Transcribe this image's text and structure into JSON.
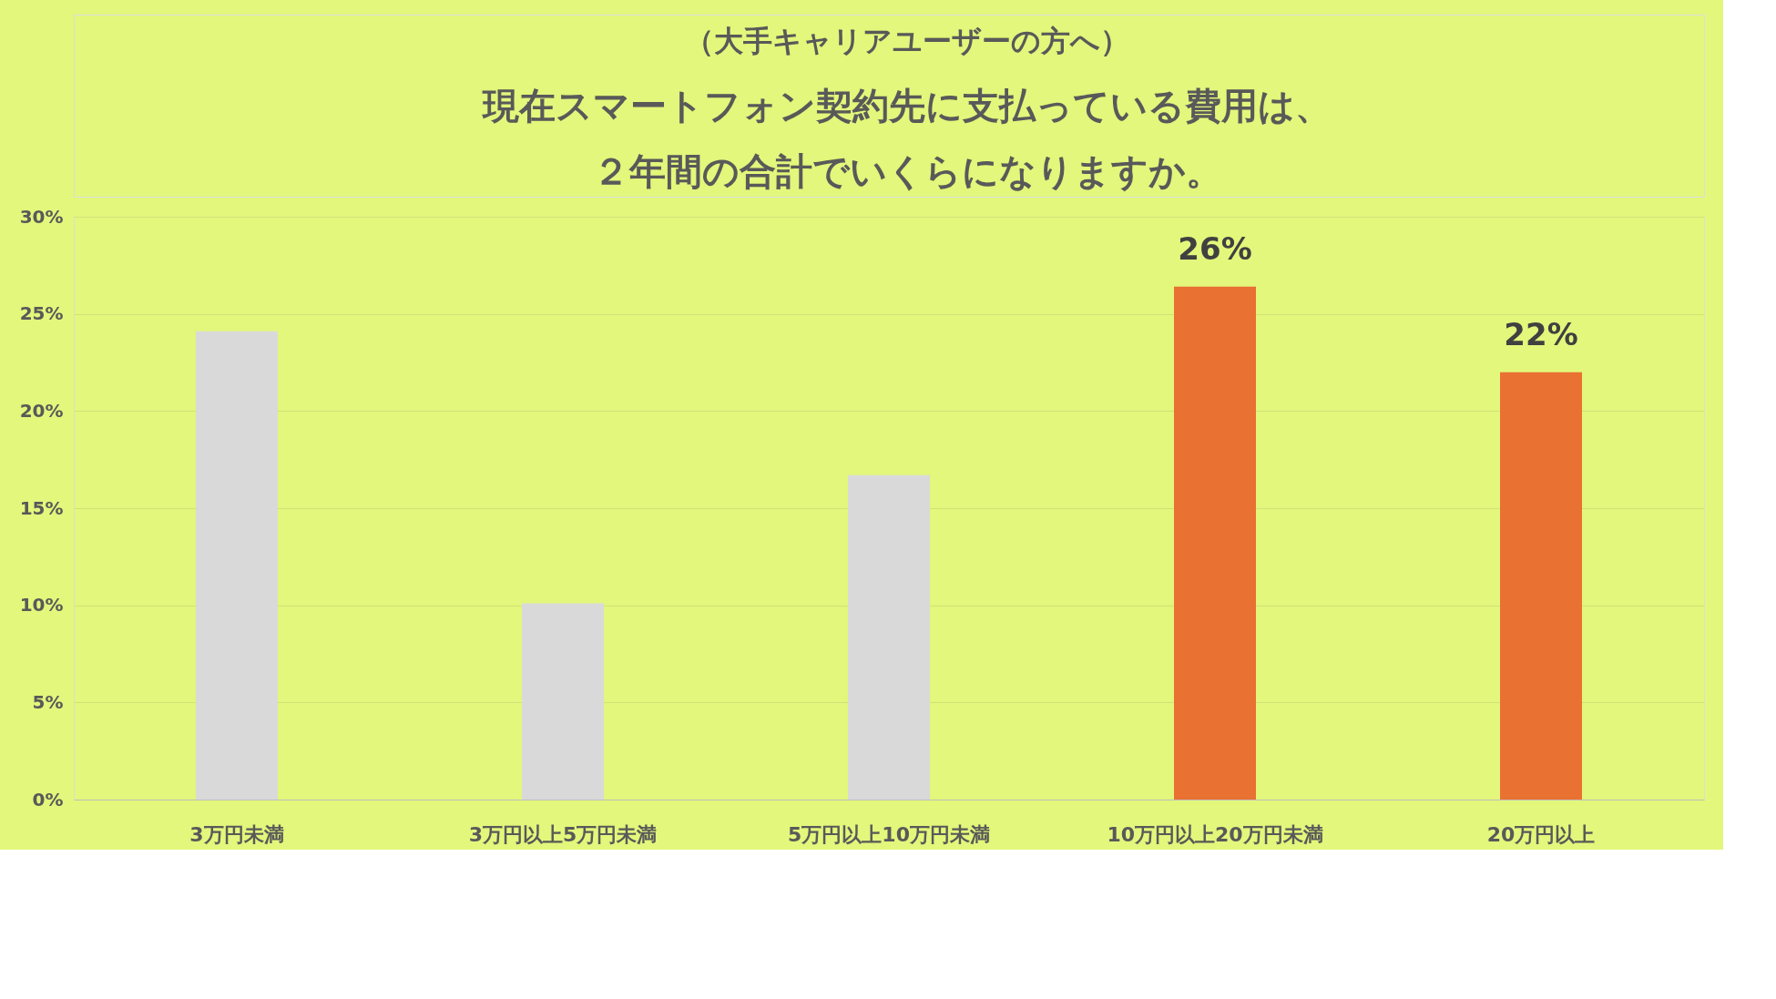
{
  "chart_data": {
    "type": "bar",
    "subtitle": "（大手キャリアユーザーの方へ）",
    "title": "現在スマートフォン契約先に支払っている費用は、２年間の合計でいくらになりますか。",
    "categories": [
      "3万円未満",
      "3万円以上5万円未満",
      "5万円以上10万円未満",
      "10万円以上20万円未満",
      "20万円以上"
    ],
    "values": [
      24.1,
      10.1,
      16.7,
      26.4,
      22.0
    ],
    "colors": [
      "#d9d9d9",
      "#d9d9d9",
      "#d9d9d9",
      "#e97132",
      "#e97132"
    ],
    "value_labels": [
      null,
      null,
      null,
      "26%",
      "22%"
    ],
    "ylim": [
      0,
      30
    ],
    "yticks": [
      {
        "value": 0,
        "label": "0%"
      },
      {
        "value": 5,
        "label": "5%"
      },
      {
        "value": 10,
        "label": "10%"
      },
      {
        "value": 15,
        "label": "15%"
      },
      {
        "value": 20,
        "label": "20%"
      },
      {
        "value": 25,
        "label": "25%"
      },
      {
        "value": 30,
        "label": "30%"
      }
    ],
    "grid": "y"
  }
}
